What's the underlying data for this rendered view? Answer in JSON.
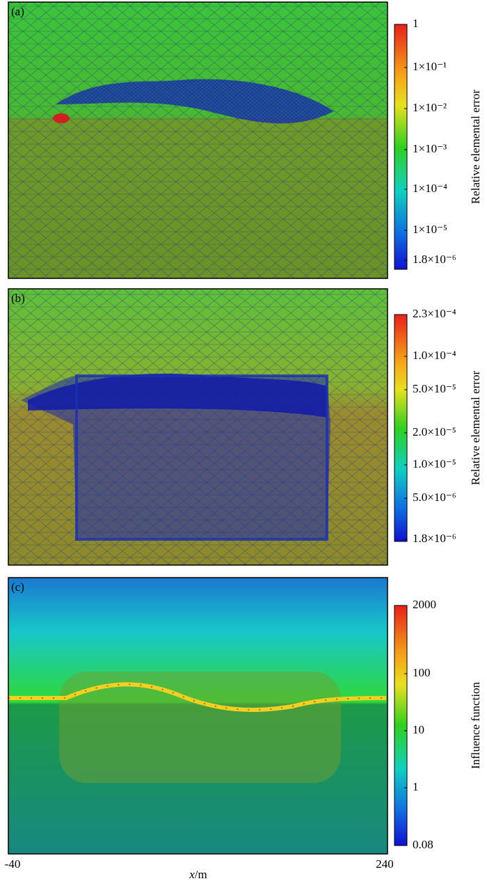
{
  "figure": {
    "panels": [
      {
        "label": "(a)",
        "colorbar_title": "Relative elemental error",
        "colorbar_ticks": [
          "1",
          "1×10⁻¹",
          "1×10⁻²",
          "1×10⁻³",
          "1×10⁻⁴",
          "1×10⁻⁵",
          "1.8×10⁻⁶"
        ]
      },
      {
        "label": "(b)",
        "colorbar_title": "Relative elemental error",
        "colorbar_ticks": [
          "2.3×10⁻⁴",
          "1.0×10⁻⁴",
          "5.0×10⁻⁵",
          "2.0×10⁻⁵",
          "1.0×10⁻⁵",
          "5.0×10⁻⁶",
          "1.8×10⁻⁶"
        ]
      },
      {
        "label": "(c)",
        "colorbar_title": "Influence function",
        "colorbar_ticks": [
          "2000",
          "100",
          "10",
          "1",
          "0.08"
        ]
      }
    ],
    "x_axis": {
      "min_label": "-40",
      "max_label": "240",
      "label_var": "x",
      "label_unit": "/m"
    }
  }
}
